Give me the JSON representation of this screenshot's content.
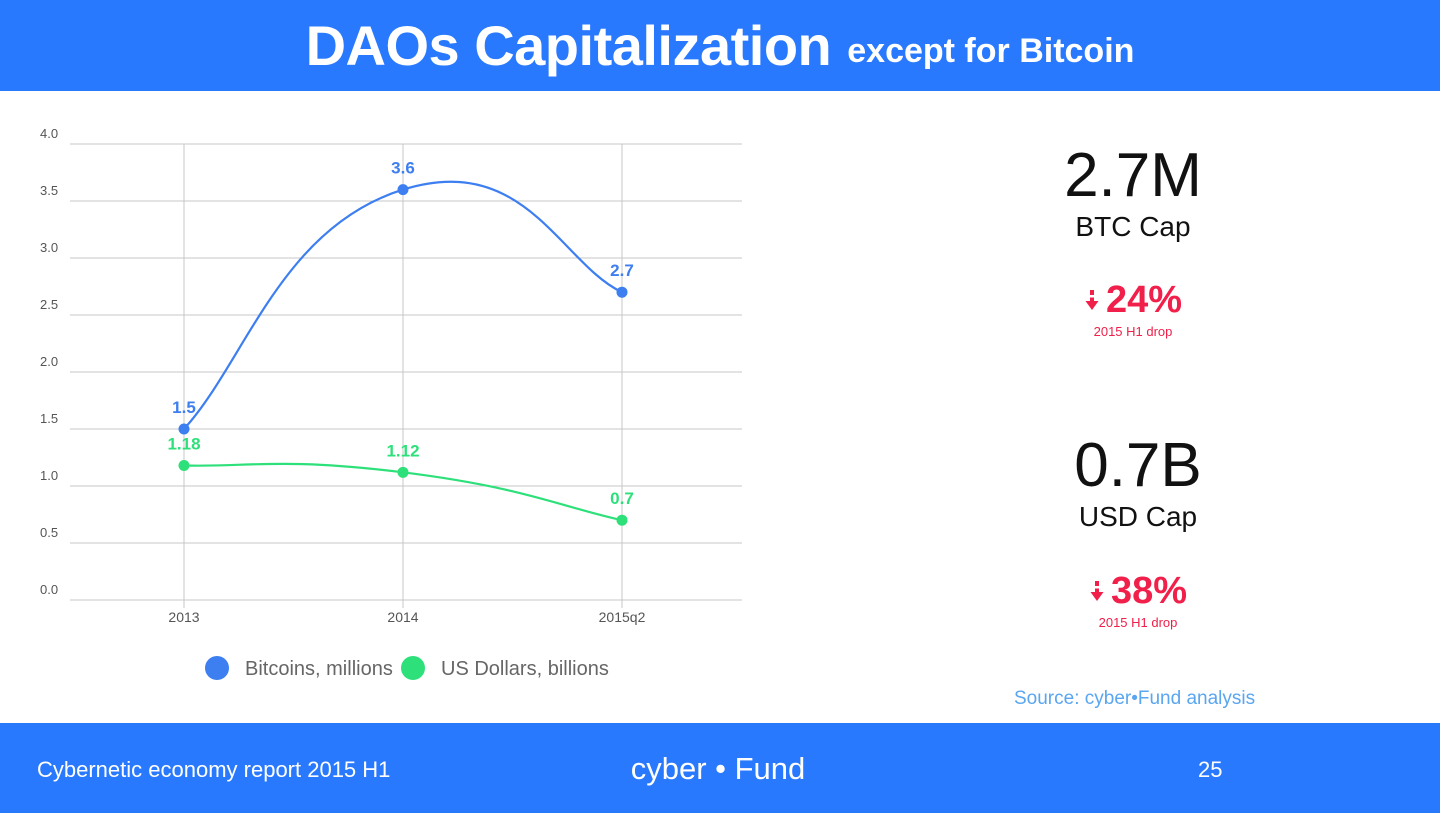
{
  "header": {
    "title": "DAOs Capitalization",
    "subtitle": "except for  Bitcoin"
  },
  "chart_data": {
    "type": "line",
    "categories": [
      "2013",
      "2014",
      "2015q2"
    ],
    "ylim": [
      0,
      4.0
    ],
    "yticks": [
      "0.0",
      "0.5",
      "1.0",
      "1.5",
      "2.0",
      "2.5",
      "3.0",
      "3.5",
      "4.0"
    ],
    "grid": true,
    "legend_position": "bottom",
    "series": [
      {
        "name": "Bitcoins, millions",
        "values": [
          1.5,
          3.6,
          2.7
        ],
        "labels": [
          "1.5",
          "3.6",
          "2.7"
        ],
        "color": "#3d7ef0"
      },
      {
        "name": "US Dollars, billions",
        "values": [
          1.18,
          1.12,
          0.7
        ],
        "labels": [
          "1.18",
          "1.12",
          "0.7"
        ],
        "color": "#2ee07a"
      }
    ]
  },
  "stats": {
    "btc": {
      "value": "2.7M",
      "label": "BTC Cap",
      "drop": "24%",
      "drop_label": "2015 H1 drop"
    },
    "usd": {
      "value": "0.7B",
      "label": "USD Cap",
      "drop": "38%",
      "drop_label": "2015 H1 drop"
    }
  },
  "source": "Source: cyber•Fund analysis",
  "footer": {
    "report": "Cybernetic economy report 2015 H1",
    "brand": "cyber • Fund",
    "page": "25"
  },
  "colors": {
    "brand_blue": "#2979ff",
    "drop_red": "#f0204a",
    "source_blue": "#5aa6f0"
  }
}
